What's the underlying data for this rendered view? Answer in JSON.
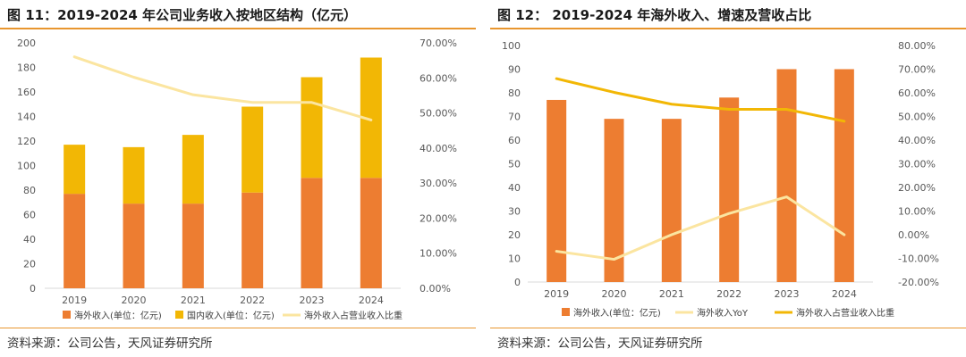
{
  "panels": [
    {
      "title": "图 11：2019-2024 年公司业务收入按地区结构（亿元）",
      "source": "资料来源：公司公告，天风证券研究所"
    },
    {
      "title": "图 12：  2019-2024 年海外收入、增速及营收占比",
      "source": "资料来源：公司公告，天风证券研究所"
    }
  ],
  "chart_data": [
    {
      "type": "bar",
      "stacked": true,
      "categories": [
        "2019",
        "2020",
        "2021",
        "2022",
        "2023",
        "2024"
      ],
      "series": [
        {
          "name": "海外收入(单位：亿元)",
          "kind": "bar",
          "axis": "left",
          "color": "#ed7d31",
          "values": [
            77,
            69,
            69,
            78,
            90,
            90
          ]
        },
        {
          "name": "国内收入(单位：亿元)",
          "kind": "bar",
          "axis": "left",
          "color": "#f2b705",
          "values": [
            40,
            46,
            56,
            70,
            82,
            98
          ]
        },
        {
          "name": "海外收入占营业收入比重",
          "kind": "line",
          "axis": "right",
          "color": "#fbe5a0",
          "values": [
            66.0,
            60.2,
            55.2,
            53.0,
            53.0,
            48.0
          ]
        }
      ],
      "y_left": {
        "min": 0,
        "max": 200,
        "step": 20,
        "ticks": [
          "0",
          "20",
          "40",
          "60",
          "80",
          "100",
          "120",
          "140",
          "160",
          "180",
          "200"
        ]
      },
      "y_right": {
        "min": 0,
        "max": 70,
        "step": 10,
        "ticks": [
          "0.00%",
          "10.00%",
          "20.00%",
          "30.00%",
          "40.00%",
          "50.00%",
          "60.00%",
          "70.00%"
        ]
      },
      "grid": false,
      "legend_position": "bottom"
    },
    {
      "type": "bar",
      "categories": [
        "2019",
        "2020",
        "2021",
        "2022",
        "2023",
        "2024"
      ],
      "series": [
        {
          "name": "海外收入(单位：亿元)",
          "kind": "bar",
          "axis": "left",
          "color": "#ed7d31",
          "values": [
            77,
            69,
            69,
            78,
            90,
            90
          ]
        },
        {
          "name": "海外收入YoY",
          "kind": "line",
          "axis": "right",
          "color": "#fbe5a0",
          "values": [
            -7.0,
            -10.4,
            0.0,
            9.0,
            16.0,
            0.0
          ]
        },
        {
          "name": "海外收入占营业收入比重",
          "kind": "line",
          "axis": "right",
          "color": "#f2b705",
          "values": [
            66.0,
            60.2,
            55.2,
            53.0,
            53.0,
            48.0
          ]
        }
      ],
      "y_left": {
        "min": 0,
        "max": 100,
        "step": 10,
        "ticks": [
          "0",
          "10",
          "20",
          "30",
          "40",
          "50",
          "60",
          "70",
          "80",
          "90",
          "100"
        ]
      },
      "y_right": {
        "min": -20,
        "max": 80,
        "step": 10,
        "ticks": [
          "-20.00%",
          "-10.00%",
          "0.00%",
          "10.00%",
          "20.00%",
          "30.00%",
          "40.00%",
          "50.00%",
          "60.00%",
          "70.00%",
          "80.00%"
        ]
      },
      "grid": false,
      "legend_position": "bottom"
    }
  ]
}
